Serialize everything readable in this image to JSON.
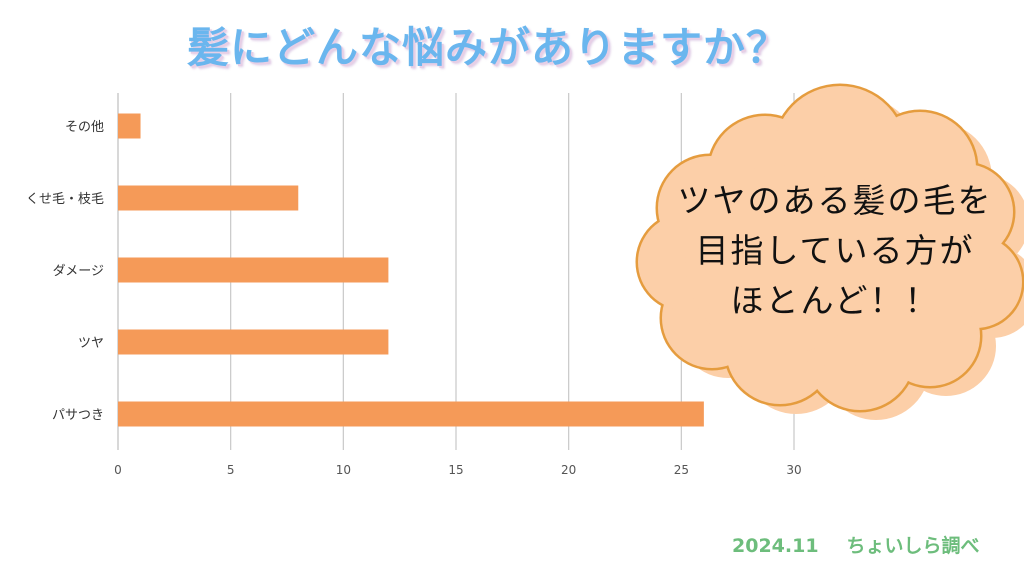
{
  "title": "髪にどんな悩みがありますか？",
  "chart_data": {
    "type": "bar",
    "orientation": "horizontal",
    "categories": [
      "その他",
      "くせ毛・枝毛",
      "ダメージ",
      "ツヤ",
      "パサつき"
    ],
    "values": [
      1,
      8,
      12,
      12,
      26
    ],
    "xlim": [
      0,
      30
    ],
    "xticks": [
      "0",
      "5",
      "10",
      "15",
      "20",
      "25",
      "30"
    ],
    "grid": true,
    "bar_color": "#f59a58",
    "grid_color": "#c8c8c8"
  },
  "callout": {
    "lines": [
      "ツヤのある髪の毛を",
      "目指している方が",
      "ほとんど！！"
    ],
    "fill_color": "#fccfa8",
    "outline_color": "#e59c3e"
  },
  "footer": {
    "date": "2024.11",
    "source": "ちょいしら調べ"
  }
}
